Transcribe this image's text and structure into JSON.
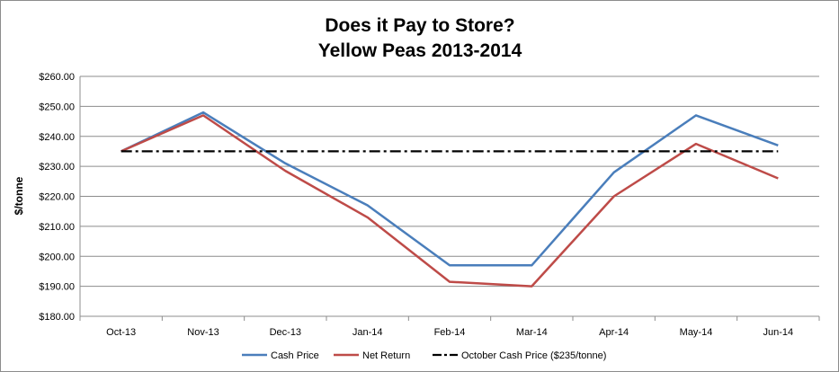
{
  "chart_data": {
    "type": "line",
    "title": "Does it Pay to Store?",
    "subtitle": "Yellow Peas 2013-2014",
    "xlabel": "",
    "ylabel": "$/tonne",
    "categories": [
      "Oct-13",
      "Nov-13",
      "Dec-13",
      "Jan-14",
      "Feb-14",
      "Mar-14",
      "Apr-14",
      "May-14",
      "Jun-14"
    ],
    "ylim": [
      180,
      260
    ],
    "ytick_step": 10,
    "ytick_labels": [
      "$180.00",
      "$190.00",
      "$200.00",
      "$210.00",
      "$220.00",
      "$230.00",
      "$240.00",
      "$250.00",
      "$260.00"
    ],
    "grid": true,
    "legend_position": "bottom",
    "series": [
      {
        "name": "Cash Price",
        "color": "#4a7ebb",
        "dash": "solid",
        "values": [
          235,
          248,
          231,
          217,
          197,
          197,
          228,
          247,
          237
        ]
      },
      {
        "name": "Net Return",
        "color": "#be4b48",
        "dash": "solid",
        "values": [
          235,
          247,
          228.5,
          213,
          191.5,
          190,
          220,
          237.5,
          226
        ]
      },
      {
        "name": "October Cash Price ($235/tonne)",
        "color": "#000000",
        "dash": "dash-dot",
        "values": [
          235,
          235,
          235,
          235,
          235,
          235,
          235,
          235,
          235
        ]
      }
    ]
  }
}
